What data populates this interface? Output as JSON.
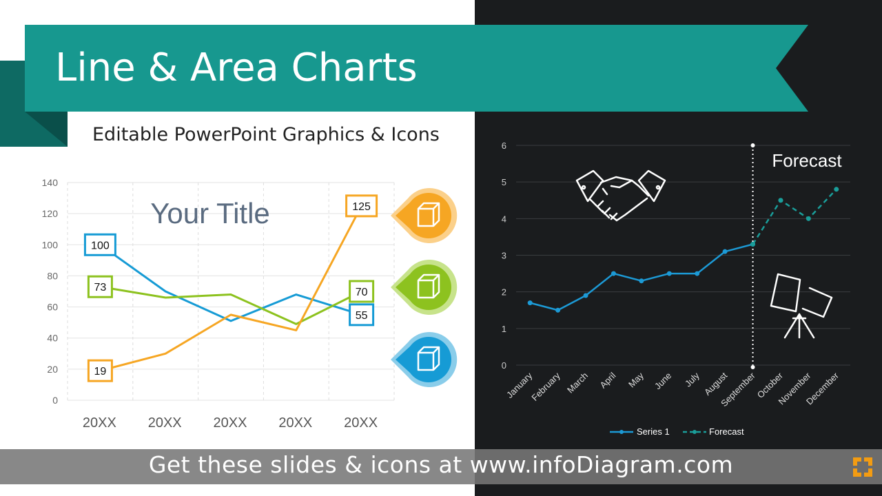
{
  "header": {
    "title": "Line & Area Charts",
    "subtitle": "Editable PowerPoint Graphics & Icons"
  },
  "footer": {
    "text": "Get these slides & icons at www.infoDiagram.com"
  },
  "colors": {
    "teal": "#17988f",
    "teal_dark": "#0e6a63",
    "blue": "#169bd5",
    "green": "#8dc21f",
    "orange": "#f6a623",
    "dark_bg": "#1a1c1e",
    "forecast": "#1a9e9a",
    "series1": "#1c9ad6"
  },
  "icons": {
    "left_markers": [
      "box-icon",
      "box-icon",
      "box-icon"
    ],
    "right_chart": [
      "handshake-icon",
      "projector-icon"
    ],
    "footer_logo": "infodiagram-logo-icon"
  },
  "chart_data": [
    {
      "type": "line",
      "title": "Your Title",
      "categories": [
        "20XX",
        "20XX",
        "20XX",
        "20XX",
        "20XX"
      ],
      "ylim": [
        0,
        140
      ],
      "yticks": [
        0,
        20,
        40,
        60,
        80,
        100,
        120,
        140
      ],
      "grid": true,
      "series": [
        {
          "color": "#169bd5",
          "values": [
            100,
            70,
            51,
            68,
            55
          ],
          "start_label": "100",
          "end_label": "55"
        },
        {
          "color": "#8dc21f",
          "values": [
            73,
            66,
            68,
            49,
            70
          ],
          "start_label": "73",
          "end_label": "70"
        },
        {
          "color": "#f6a623",
          "values": [
            19,
            30,
            55,
            45,
            125
          ],
          "start_label": "19",
          "end_label": "125"
        }
      ]
    },
    {
      "type": "line",
      "categories": [
        "January",
        "February",
        "March",
        "April",
        "May",
        "June",
        "July",
        "August",
        "September",
        "October",
        "November",
        "December"
      ],
      "ylim": [
        0,
        6
      ],
      "yticks": [
        0,
        1,
        2,
        3,
        4,
        5,
        6
      ],
      "grid": true,
      "annotation": "Forecast",
      "legend_position": "bottom",
      "series": [
        {
          "name": "Series 1",
          "color": "#1c9ad6",
          "style": "solid",
          "values": [
            1.7,
            1.5,
            1.9,
            2.5,
            2.3,
            2.5,
            2.5,
            3.1,
            3.3,
            null,
            null,
            null
          ]
        },
        {
          "name": "Forecast",
          "color": "#1a9e9a",
          "style": "dashed",
          "values": [
            null,
            null,
            null,
            null,
            null,
            null,
            null,
            null,
            3.3,
            4.5,
            4.0,
            4.8
          ]
        }
      ]
    }
  ]
}
